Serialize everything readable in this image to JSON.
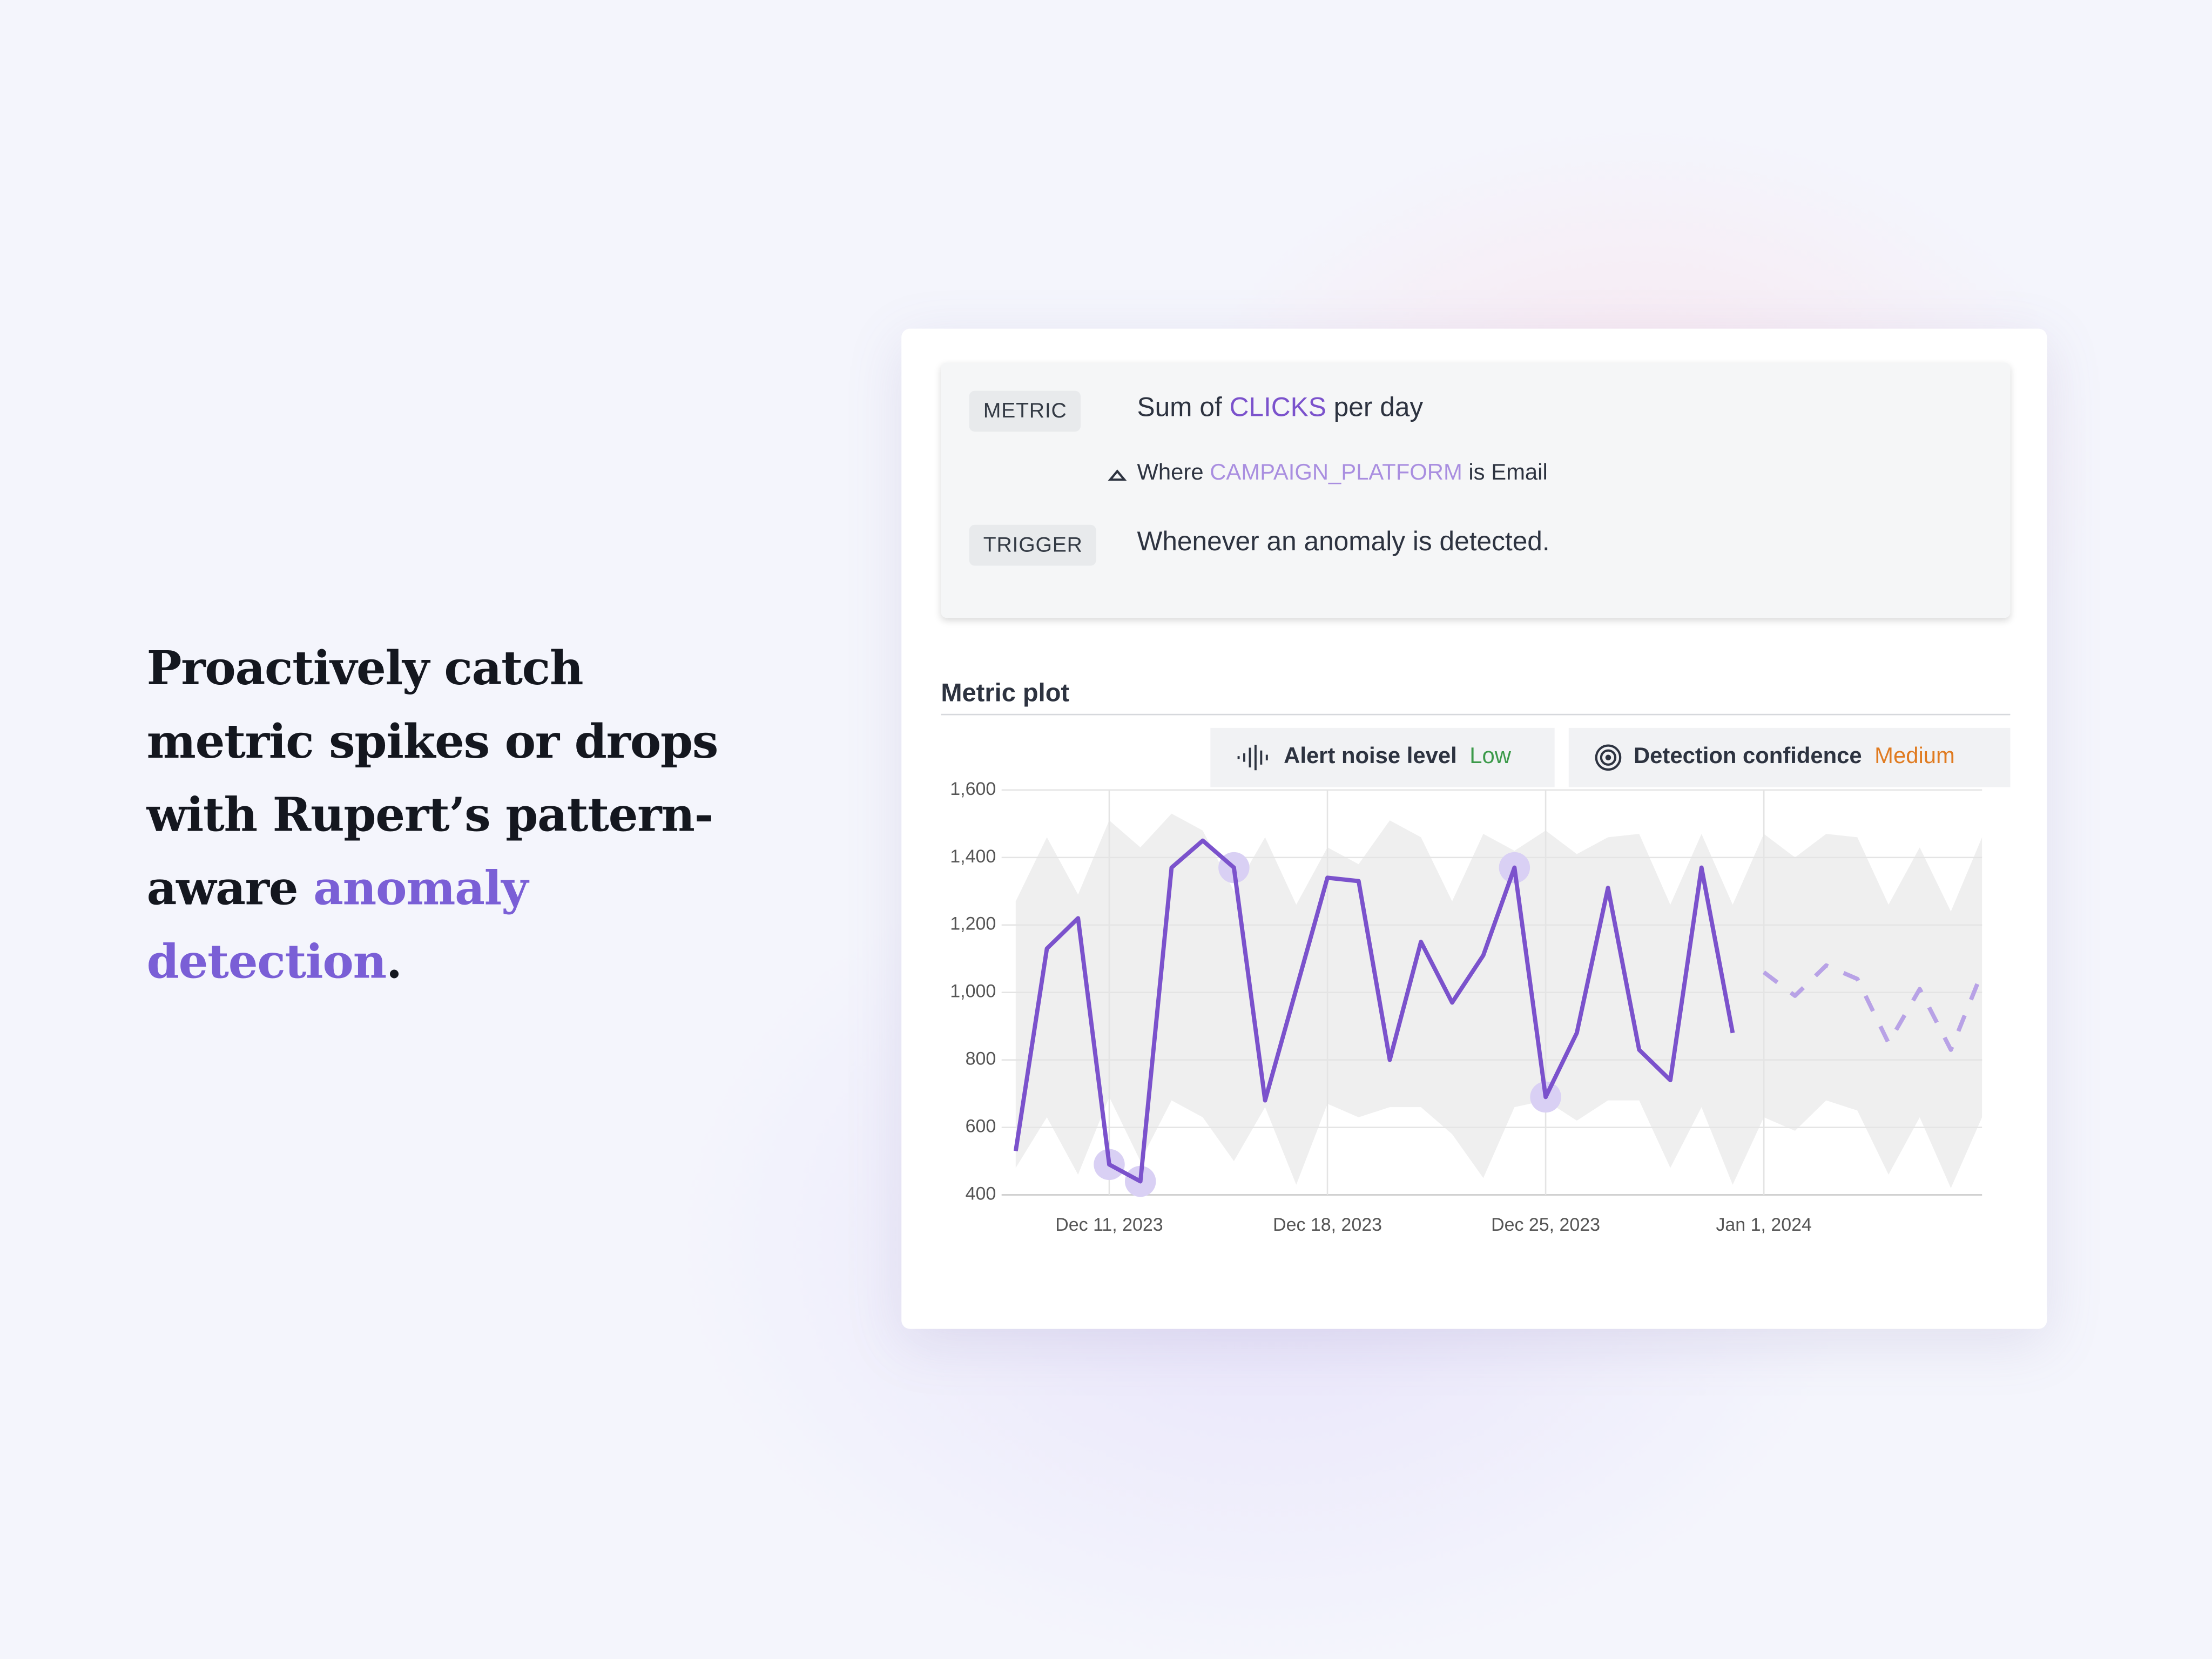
{
  "headline": {
    "lines": [
      "Proactively catch",
      "metric spikes or drops",
      "with Rupert’s pattern-"
    ],
    "line4": [
      "aware",
      "anomaly"
    ],
    "line5": [
      "detection",
      "."
    ]
  },
  "alert": {
    "metric_label": "METRIC",
    "metric": [
      "Sum",
      "of",
      "CLICKS",
      "per",
      "day"
    ],
    "filter": [
      "Where",
      "CAMPAIGN_PLATFORM",
      "is",
      "Email"
    ],
    "trigger_label": "TRIGGER",
    "trigger": "Whenever an anomaly is detected."
  },
  "plot_title": "Metric plot",
  "settings": [
    {
      "label": "Alert noise level",
      "value": "Low"
    },
    {
      "label": "Detection confidence",
      "value": "Medium"
    }
  ],
  "chart_data": {
    "type": "line",
    "x": [
      "2023-12-08",
      "2023-12-09",
      "2023-12-10",
      "2023-12-11",
      "2023-12-12",
      "2023-12-13",
      "2023-12-14",
      "2023-12-15",
      "2023-12-16",
      "2023-12-17",
      "2023-12-18",
      "2023-12-19",
      "2023-12-20",
      "2023-12-21",
      "2023-12-22",
      "2023-12-23",
      "2023-12-24",
      "2023-12-25",
      "2023-12-26",
      "2023-12-27",
      "2023-12-28",
      "2023-12-29",
      "2023-12-30",
      "2023-12-31",
      "2024-01-01",
      "2024-01-02",
      "2024-01-03",
      "2024-01-04",
      "2024-01-05",
      "2024-01-06",
      "2024-01-07",
      "2024-01-08"
    ],
    "band": {
      "color": "#efefef",
      "upper": [
        1270,
        1460,
        1290,
        1510,
        1430,
        1530,
        1480,
        1300,
        1460,
        1260,
        1430,
        1380,
        1510,
        1460,
        1270,
        1470,
        1420,
        1480,
        1410,
        1460,
        1470,
        1260,
        1470,
        1260,
        1470,
        1400,
        1470,
        1460,
        1260,
        1430,
        1240,
        1460
      ],
      "lower": [
        480,
        630,
        460,
        690,
        500,
        680,
        630,
        500,
        660,
        430,
        670,
        630,
        660,
        660,
        580,
        450,
        660,
        680,
        620,
        680,
        680,
        480,
        660,
        430,
        630,
        590,
        680,
        650,
        460,
        630,
        420,
        630
      ]
    },
    "series": [
      {
        "color": "#d9d0f4",
        "marker": "circle",
        "values": [
          null,
          null,
          null,
          490,
          440,
          null,
          null,
          1370,
          null,
          null,
          null,
          null,
          null,
          null,
          null,
          null,
          1370,
          690,
          null,
          null,
          null,
          null,
          null,
          null,
          null,
          null,
          null,
          null,
          null,
          null,
          null,
          null
        ]
      },
      {
        "color": "#7b52cc",
        "values": [
          530,
          1130,
          1220,
          490,
          440,
          1370,
          1450,
          1370,
          680,
          1010,
          1340,
          1330,
          800,
          1150,
          970,
          1110,
          1370,
          690,
          880,
          1310,
          830,
          740,
          1370,
          880,
          null,
          null,
          null,
          null,
          null,
          null,
          null,
          null
        ]
      },
      {
        "color": "#b8a2e6",
        "dash": true,
        "values": [
          null,
          null,
          null,
          null,
          null,
          null,
          null,
          null,
          null,
          null,
          null,
          null,
          null,
          null,
          null,
          null,
          null,
          null,
          null,
          null,
          null,
          null,
          null,
          null,
          1060,
          990,
          1080,
          1040,
          850,
          1010,
          830,
          1060
        ]
      }
    ],
    "xlim": [
      "2023-12-08",
      "2024-01-08"
    ],
    "xticks": [
      {
        "value": "2023-12-11",
        "label": "Dec 11, 2023"
      },
      {
        "value": "2023-12-18",
        "label": "Dec 18, 2023"
      },
      {
        "value": "2023-12-25",
        "label": "Dec 25, 2023"
      },
      {
        "value": "2024-01-01",
        "label": "Jan 1, 2024"
      }
    ],
    "ylim": [
      400,
      1600
    ],
    "yticks": [
      400,
      600,
      800,
      {
        "value": 1000,
        "label": "1,000"
      },
      {
        "value": 1200,
        "label": "1,200"
      },
      {
        "value": 1400,
        "label": "1,400"
      },
      {
        "value": 1600,
        "label": "1,600"
      }
    ],
    "grid": true
  }
}
